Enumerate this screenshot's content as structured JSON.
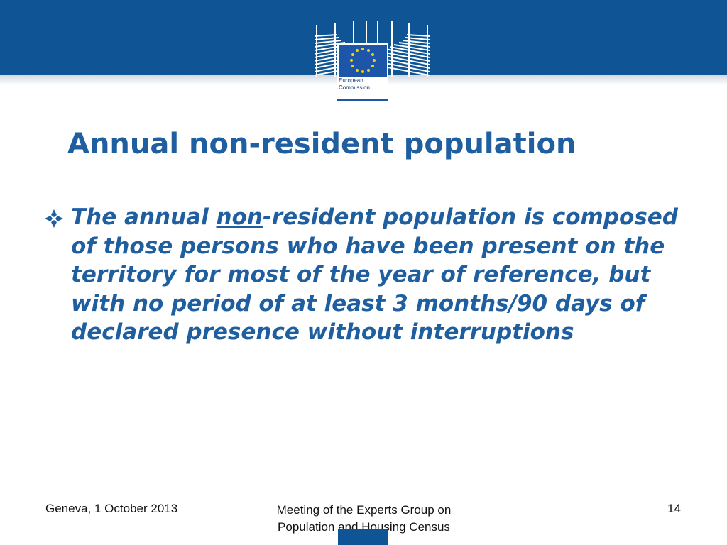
{
  "header": {
    "logo": {
      "name": "european-commission-logo",
      "text_line1": "European",
      "text_line2": "Commission"
    },
    "band_color": "#0f5494"
  },
  "slide": {
    "title": "Annual non-resident population",
    "bullet": {
      "icon": "diamond-bullet-icon",
      "text_before": "The annual ",
      "text_underlined": "non",
      "text_after": "-resident population is composed of those persons who have been present on the territory for most of the year of reference, but with no period of at least 3 months/90 days of declared presence without interruptions"
    },
    "text_color": "#1f5fa0"
  },
  "footer": {
    "left": "Geneva, 1 October 2013",
    "center_line1": "Meeting of the Experts Group on",
    "center_line2": "Population and Housing Census",
    "page_number": "14"
  }
}
